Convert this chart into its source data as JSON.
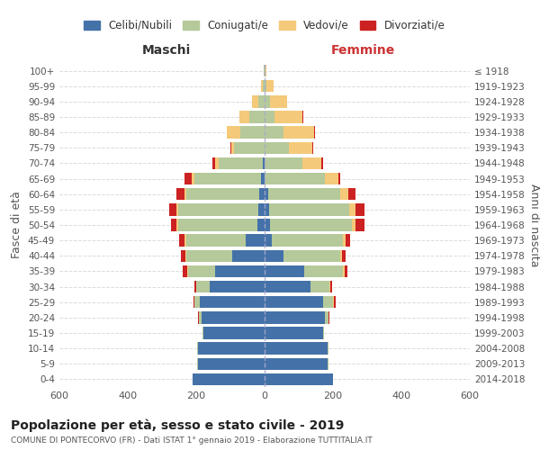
{
  "age_groups": [
    "0-4",
    "5-9",
    "10-14",
    "15-19",
    "20-24",
    "25-29",
    "30-34",
    "35-39",
    "40-44",
    "45-49",
    "50-54",
    "55-59",
    "60-64",
    "65-69",
    "70-74",
    "75-79",
    "80-84",
    "85-89",
    "90-94",
    "95-99",
    "100+"
  ],
  "birth_years": [
    "2014-2018",
    "2009-2013",
    "2004-2008",
    "1999-2003",
    "1994-1998",
    "1989-1993",
    "1984-1988",
    "1979-1983",
    "1974-1978",
    "1969-1973",
    "1964-1968",
    "1959-1963",
    "1954-1958",
    "1949-1953",
    "1944-1948",
    "1939-1943",
    "1934-1938",
    "1929-1933",
    "1924-1928",
    "1919-1923",
    "≤ 1918"
  ],
  "male": {
    "celibi": [
      210,
      195,
      195,
      180,
      185,
      190,
      160,
      145,
      95,
      55,
      22,
      18,
      15,
      10,
      5,
      0,
      0,
      0,
      0,
      0,
      0
    ],
    "coniugati": [
      0,
      2,
      2,
      2,
      8,
      15,
      40,
      80,
      135,
      175,
      230,
      235,
      215,
      195,
      130,
      90,
      70,
      45,
      18,
      5,
      2
    ],
    "vedovi": [
      0,
      0,
      0,
      0,
      0,
      0,
      0,
      2,
      2,
      3,
      5,
      5,
      5,
      8,
      10,
      8,
      40,
      30,
      20,
      5,
      0
    ],
    "divorziati": [
      0,
      0,
      0,
      0,
      2,
      2,
      5,
      12,
      12,
      18,
      18,
      20,
      22,
      20,
      8,
      3,
      0,
      0,
      0,
      0,
      0
    ]
  },
  "female": {
    "nubili": [
      200,
      185,
      185,
      170,
      175,
      170,
      135,
      115,
      55,
      20,
      15,
      12,
      10,
      0,
      0,
      0,
      0,
      0,
      0,
      0,
      0
    ],
    "coniugate": [
      0,
      2,
      2,
      4,
      12,
      30,
      55,
      115,
      165,
      210,
      240,
      235,
      210,
      175,
      110,
      70,
      55,
      30,
      15,
      5,
      2
    ],
    "vedove": [
      0,
      0,
      0,
      0,
      0,
      2,
      2,
      3,
      5,
      8,
      12,
      18,
      25,
      40,
      55,
      70,
      90,
      80,
      50,
      20,
      2
    ],
    "divorziate": [
      0,
      0,
      0,
      0,
      2,
      5,
      5,
      8,
      12,
      12,
      25,
      28,
      20,
      5,
      5,
      3,
      2,
      2,
      0,
      0,
      0
    ]
  },
  "colors": {
    "celibi": "#4472a8",
    "coniugati": "#b5c99a",
    "vedovi": "#f5c97a",
    "divorziati": "#cc2222"
  },
  "title": "Popolazione per età, sesso e stato civile - 2019",
  "subtitle": "COMUNE DI PONTECORVO (FR) - Dati ISTAT 1° gennaio 2019 - Elaborazione TUTTITALIA.IT",
  "ylabel": "Fasce di età",
  "ylabel_right": "Anni di nascita",
  "xlabel_left": "Maschi",
  "xlabel_right": "Femmine",
  "xlim": 600,
  "legend_labels": [
    "Celibi/Nubili",
    "Coniugati/e",
    "Vedovi/e",
    "Divorziati/e"
  ]
}
